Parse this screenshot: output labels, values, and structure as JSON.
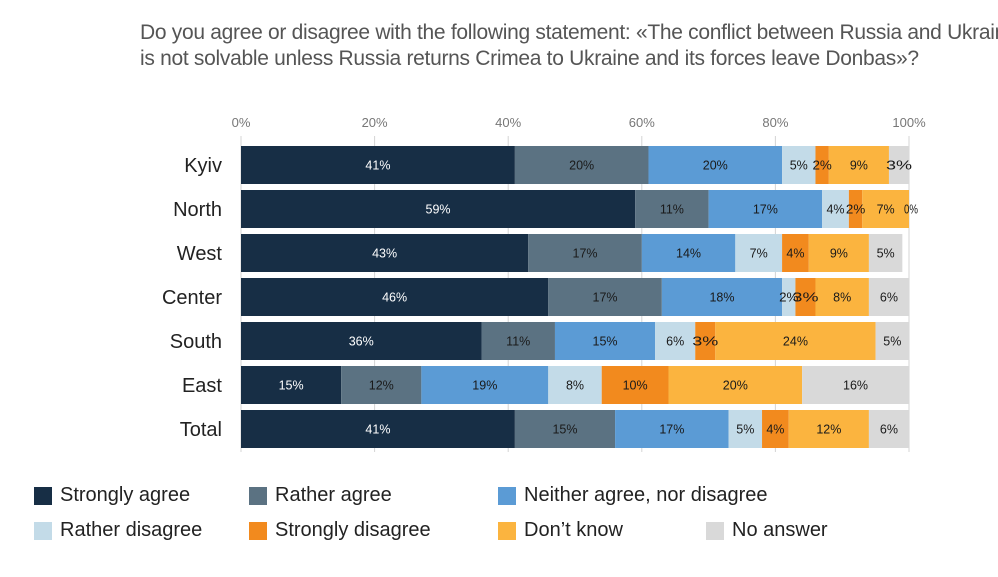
{
  "chart_data": {
    "type": "bar",
    "orientation": "horizontal",
    "stacked": true,
    "title_lines": [
      "Do you agree or disagree with the following statement: «The conflict between Russia and Ukraine",
      "is not solvable unless Russia returns Crimea to Ukraine and its forces leave Donbas»?"
    ],
    "xlim": [
      0,
      100
    ],
    "x_ticks": [
      {
        "value": 0,
        "label": "0%"
      },
      {
        "value": 20,
        "label": "20%"
      },
      {
        "value": 40,
        "label": "40%"
      },
      {
        "value": 60,
        "label": "60%"
      },
      {
        "value": 80,
        "label": "80%"
      },
      {
        "value": 100,
        "label": "100%"
      }
    ],
    "legend_position": "bottom",
    "categories": [
      "Kyiv",
      "North",
      "West",
      "Center",
      "South",
      "East",
      "Total"
    ],
    "series": [
      {
        "name": "Strongly agree",
        "color": "#172e45",
        "label_color": "#ffffff",
        "values": [
          41,
          59,
          43,
          46,
          36,
          15,
          41
        ]
      },
      {
        "name": "Rather agree",
        "color": "#5b7282",
        "label_color": "#1a1a1a",
        "values": [
          20,
          11,
          17,
          17,
          11,
          12,
          15
        ]
      },
      {
        "name": "Neither agree, nor disagree",
        "color": "#5b9bd5",
        "label_color": "#1a1a1a",
        "values": [
          20,
          17,
          14,
          18,
          15,
          19,
          17
        ]
      },
      {
        "name": "Rather disagree",
        "color": "#c3dbe8",
        "label_color": "#1a1a1a",
        "values": [
          5,
          4,
          7,
          2,
          6,
          8,
          5
        ]
      },
      {
        "name": "Strongly disagree",
        "color": "#f28a1e",
        "label_color": "#1a1a1a",
        "values": [
          2,
          2,
          4,
          3,
          3,
          10,
          4
        ]
      },
      {
        "name": "Don’t know",
        "color": "#fbb43f",
        "label_color": "#1a1a1a",
        "values": [
          9,
          7,
          9,
          8,
          24,
          20,
          12
        ]
      },
      {
        "name": "No answer",
        "color": "#d9d9d9",
        "label_color": "#1a1a1a",
        "values": [
          3,
          0,
          5,
          6,
          5,
          16,
          6
        ]
      }
    ]
  }
}
